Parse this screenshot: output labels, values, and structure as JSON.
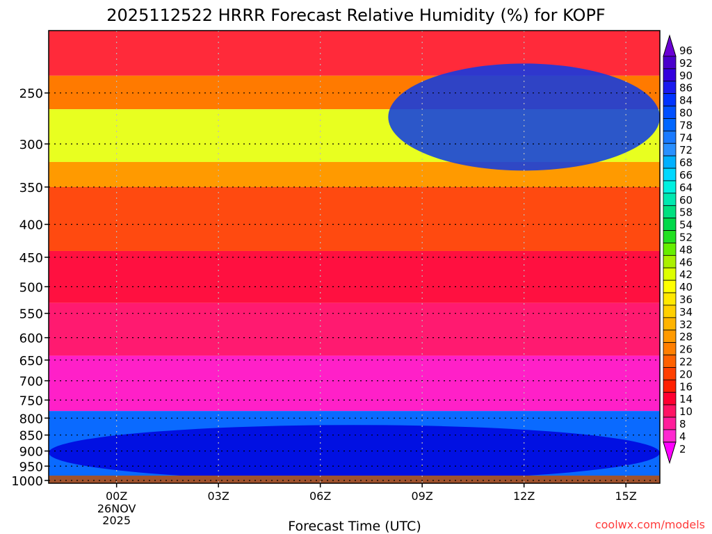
{
  "chart_data": {
    "type": "heatmap",
    "title": "2025112522 HRRR Forecast Relative Humidity (%) for KOPF",
    "xlabel": "Forecast Time (UTC)",
    "ylabel": "",
    "x_ticks": [
      {
        "label": "00Z",
        "hour": 0,
        "sub": [
          "26NOV",
          "2025"
        ]
      },
      {
        "label": "03Z",
        "hour": 3,
        "sub": []
      },
      {
        "label": "06Z",
        "hour": 6,
        "sub": []
      },
      {
        "label": "09Z",
        "hour": 9,
        "sub": []
      },
      {
        "label": "12Z",
        "hour": 12,
        "sub": []
      },
      {
        "label": "15Z",
        "hour": 15,
        "sub": []
      }
    ],
    "xlim": [
      -2,
      16
    ],
    "y_ticks": [
      250,
      300,
      350,
      400,
      450,
      500,
      550,
      600,
      650,
      700,
      750,
      800,
      850,
      900,
      950,
      1000
    ],
    "ylim": [
      1010,
      200
    ],
    "y_scale": "log",
    "x_gridlines": "dotted",
    "y_gridlines": "dotted",
    "colorbar_labels": [
      96,
      92,
      90,
      86,
      84,
      80,
      78,
      74,
      72,
      68,
      66,
      64,
      60,
      58,
      54,
      52,
      48,
      46,
      42,
      40,
      36,
      34,
      32,
      28,
      26,
      22,
      20,
      16,
      14,
      10,
      8,
      4,
      2
    ],
    "colorbar_colors": [
      "#6a00d4",
      "#4a00cc",
      "#3300dd",
      "#1a1aee",
      "#0033ff",
      "#0050ff",
      "#0066ff",
      "#1a7aff",
      "#2a90ff",
      "#00b0ff",
      "#00d8ff",
      "#00f0e0",
      "#00e8b0",
      "#00e080",
      "#00d84a",
      "#22e022",
      "#66ee00",
      "#aaf000",
      "#ddff00",
      "#ffff00",
      "#ffe800",
      "#ffd000",
      "#ffb400",
      "#ff9a00",
      "#ff7f00",
      "#ff6200",
      "#ff4000",
      "#ff2000",
      "#ff0030",
      "#ff1464",
      "#ff1e9a",
      "#ff28d0",
      "#ff00ff"
    ],
    "rh_bands": [
      {
        "p_top": 200,
        "p_bottom": 235,
        "rh": 18,
        "color": "#ff2a3a"
      },
      {
        "p_top": 235,
        "p_bottom": 265,
        "rh": 26,
        "color": "#ff7a00"
      },
      {
        "p_top": 265,
        "p_bottom": 320,
        "rh": 46,
        "color": "#e8ff20"
      },
      {
        "p_top": 320,
        "p_bottom": 350,
        "rh": 30,
        "color": "#ff9a00"
      },
      {
        "p_top": 350,
        "p_bottom": 440,
        "rh": 22,
        "color": "#ff4a10"
      },
      {
        "p_top": 440,
        "p_bottom": 530,
        "rh": 14,
        "color": "#ff1040"
      },
      {
        "p_top": 530,
        "p_bottom": 640,
        "rh": 10,
        "color": "#ff1a70"
      },
      {
        "p_top": 640,
        "p_bottom": 780,
        "rh": 6,
        "color": "#ff20c8"
      },
      {
        "p_top": 780,
        "p_bottom": 1010,
        "rh": 80,
        "color": "#0a6aff"
      }
    ],
    "features": [
      {
        "name": "upper moist region",
        "x_range": [
          8,
          16
        ],
        "p_range": [
          225,
          330
        ],
        "rh": 86,
        "color": "#0a3ae8"
      },
      {
        "name": "boundary layer moist region",
        "x_range": [
          -2,
          16
        ],
        "p_range": [
          820,
          1000
        ],
        "rh": 88,
        "color": "#0000dd"
      }
    ]
  },
  "watermark": "coolwx.com/models"
}
